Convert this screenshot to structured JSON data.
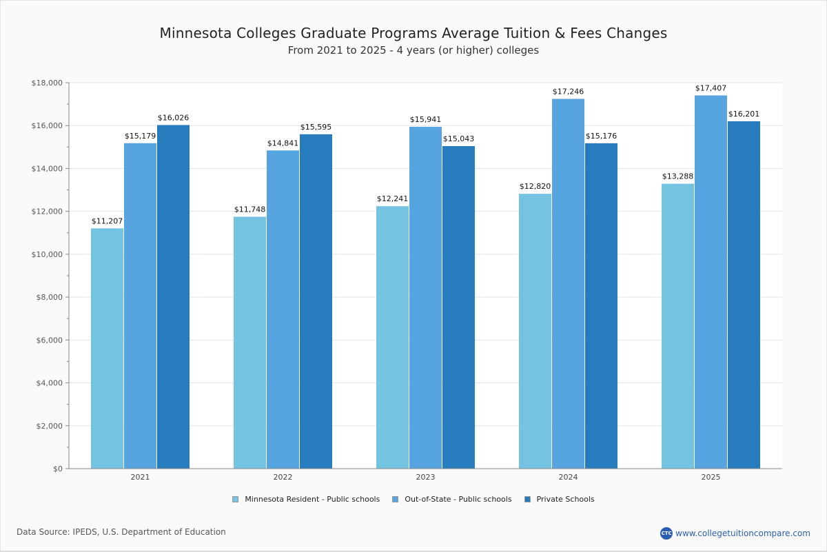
{
  "chart_data": {
    "type": "bar",
    "title": "Minnesota Colleges Graduate Programs Average Tuition & Fees Changes",
    "subtitle": "From 2021 to 2025 - 4 years (or higher) colleges",
    "xlabel": "",
    "ylabel": "",
    "categories": [
      "2021",
      "2022",
      "2023",
      "2024",
      "2025"
    ],
    "series": [
      {
        "name": "Minnesota Resident - Public schools",
        "color": "#74c4e1",
        "values": [
          11207,
          11748,
          12241,
          12820,
          13288
        ],
        "labels": [
          "$11,207",
          "$11,748",
          "$12,241",
          "$12,820",
          "$13,288"
        ]
      },
      {
        "name": "Out-of-State - Public schools",
        "color": "#56a5e1",
        "values": [
          15179,
          14841,
          15941,
          17246,
          17407
        ],
        "labels": [
          "$15,179",
          "$14,841",
          "$15,941",
          "$17,246",
          "$17,407"
        ]
      },
      {
        "name": "Private Schools",
        "color": "#267cbd",
        "values": [
          16026,
          15595,
          15043,
          15176,
          16201
        ],
        "labels": [
          "$16,026",
          "$15,595",
          "$15,043",
          "$15,176",
          "$16,201"
        ]
      }
    ],
    "ylim": [
      0,
      18000
    ],
    "yticks": [
      0,
      2000,
      4000,
      6000,
      8000,
      10000,
      12000,
      14000,
      16000,
      18000
    ],
    "ytick_labels": [
      "$0",
      "$2,000",
      "$4,000",
      "$6,000",
      "$8,000",
      "$10,000",
      "$12,000",
      "$14,000",
      "$16,000",
      "$18,000"
    ],
    "grid": true,
    "legend_position": "bottom-center"
  },
  "footer": {
    "source": "Data Source: IPEDS, U.S. Department of Education",
    "brand_logo": "CTC",
    "brand_url": "www.collegetuitioncompare.com"
  }
}
